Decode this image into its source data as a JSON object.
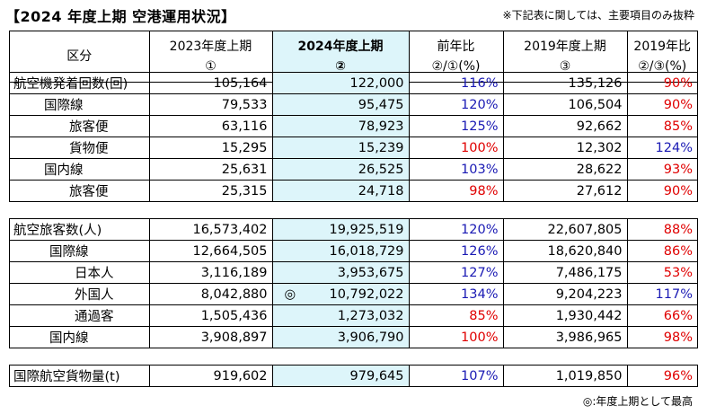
{
  "title": "【2024 年度上期  空港運用状況】",
  "note": "※下記表に関しては、主要項目のみ抜粋",
  "footnote": "◎:年度上期として最高",
  "header": {
    "col0": "区分",
    "col1": [
      "2023年度上期",
      "①"
    ],
    "col2": [
      "2024年度上期",
      "②"
    ],
    "col3": [
      "前年比",
      "②/①(%)"
    ],
    "col4": [
      "2019年度上期",
      "③"
    ],
    "col5": [
      "2019年比",
      "②/③(%)"
    ]
  },
  "sections": [
    {
      "rows": [
        {
          "label": "航空機発着回数(回)",
          "level": 0,
          "v2023": "105,164",
          "v2024": "122,000",
          "yoy": "116%",
          "yoy_dir": "up",
          "v2019": "135,126",
          "vs2019": "90%",
          "vs2019_dir": "down"
        },
        {
          "label": "国際線",
          "level": 1,
          "v2023": "79,533",
          "v2024": "95,475",
          "yoy": "120%",
          "yoy_dir": "up",
          "v2019": "106,504",
          "vs2019": "90%",
          "vs2019_dir": "down"
        },
        {
          "label": "旅客便",
          "level": 2,
          "v2023": "63,116",
          "v2024": "78,923",
          "yoy": "125%",
          "yoy_dir": "up",
          "v2019": "92,662",
          "vs2019": "85%",
          "vs2019_dir": "down"
        },
        {
          "label": "貨物便",
          "level": 2,
          "v2023": "15,295",
          "v2024": "15,239",
          "yoy": "100%",
          "yoy_dir": "down",
          "v2019": "12,302",
          "vs2019": "124%",
          "vs2019_dir": "up"
        },
        {
          "label": "国内線",
          "level": 1,
          "v2023": "25,631",
          "v2024": "26,525",
          "yoy": "103%",
          "yoy_dir": "up",
          "v2019": "28,622",
          "vs2019": "93%",
          "vs2019_dir": "down"
        },
        {
          "label": "旅客便",
          "level": 2,
          "v2023": "25,315",
          "v2024": "24,718",
          "yoy": "98%",
          "yoy_dir": "down",
          "v2019": "27,612",
          "vs2019": "90%",
          "vs2019_dir": "down"
        }
      ]
    },
    {
      "rows": [
        {
          "label": "航空旅客数(人)",
          "level": 0,
          "v2023": "16,573,402",
          "v2024": "19,925,519",
          "yoy": "120%",
          "yoy_dir": "up",
          "v2019": "22,607,805",
          "vs2019": "88%",
          "vs2019_dir": "down"
        },
        {
          "label": "国際線",
          "level": 1,
          "v2023": "12,664,505",
          "v2024": "16,018,729",
          "yoy": "126%",
          "yoy_dir": "up",
          "v2019": "18,620,840",
          "vs2019": "86%",
          "vs2019_dir": "down"
        },
        {
          "label": "日本人",
          "level": 2,
          "v2023": "3,116,189",
          "v2024": "3,953,675",
          "yoy": "127%",
          "yoy_dir": "up",
          "v2019": "7,486,175",
          "vs2019": "53%",
          "vs2019_dir": "down"
        },
        {
          "label": "外国人",
          "level": 2,
          "v2023": "8,042,880",
          "v2024": "10,792,022",
          "mark": "◎",
          "yoy": "134%",
          "yoy_dir": "up",
          "v2019": "9,204,223",
          "vs2019": "117%",
          "vs2019_dir": "up"
        },
        {
          "label": "通過客",
          "level": 2,
          "v2023": "1,505,436",
          "v2024": "1,273,032",
          "yoy": "85%",
          "yoy_dir": "down",
          "v2019": "1,930,442",
          "vs2019": "66%",
          "vs2019_dir": "down"
        },
        {
          "label": "国内線",
          "level": 1,
          "v2023": "3,908,897",
          "v2024": "3,906,790",
          "yoy": "100%",
          "yoy_dir": "down",
          "v2019": "3,986,965",
          "vs2019": "98%",
          "vs2019_dir": "down"
        }
      ]
    },
    {
      "rows": [
        {
          "label": "国際航空貨物量(t)",
          "level": 0,
          "v2023": "919,602",
          "v2024": "979,645",
          "yoy": "107%",
          "yoy_dir": "up",
          "v2019": "1,019,850",
          "vs2019": "96%",
          "vs2019_dir": "down"
        }
      ]
    }
  ]
}
